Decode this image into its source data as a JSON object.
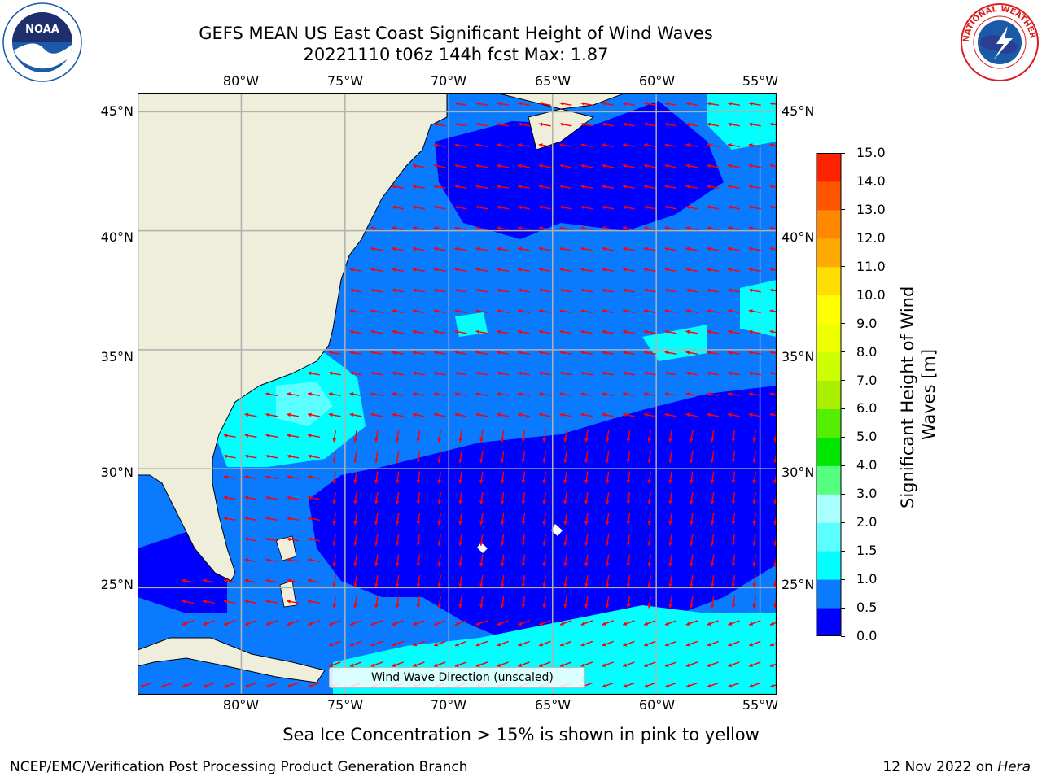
{
  "title": {
    "line1": "GEFS MEAN US East Coast Significant Height of Wind Waves",
    "line2": "20221110 t06z 144h fcst   Max: 1.87"
  },
  "logos": {
    "left": {
      "text": "NOAA",
      "ring_text": "NATIONAL OCEANIC AND ATMOSPHERIC ADMINISTRATION · U.S. DEPARTMENT OF COMMERCE",
      "color": "#1a5aa6"
    },
    "right": {
      "ring_text": "NATIONAL WEATHER SERVICE",
      "color": "#d91e1e"
    }
  },
  "map": {
    "lon_labels": [
      "80°W",
      "75°W",
      "70°W",
      "65°W",
      "60°W",
      "55°W"
    ],
    "lat_labels": [
      "45°N",
      "40°N",
      "35°N",
      "30°N",
      "25°N"
    ],
    "lon_values": [
      -80,
      -75,
      -70,
      -65,
      -60,
      -55
    ],
    "lat_values": [
      45,
      40,
      35,
      30,
      25
    ],
    "lon_range": [
      -85,
      -54.2
    ],
    "lat_range": [
      20.5,
      45.8
    ],
    "legend_label": "Wind Wave Direction (unscaled)",
    "colors": {
      "land": "#efeedb",
      "ocean_low": "#0000ff",
      "ocean_mid": "#0a7bff",
      "ocean_high": "#00ffff",
      "ocean_higher": "#5cffff",
      "arrows": "#ff0000",
      "grid": "#b0b0b0"
    }
  },
  "colorbar": {
    "label": "Significant Height of Wind Waves [m]",
    "ticks": [
      "0.0",
      "0.5",
      "1.0",
      "1.5",
      "2.0",
      "3.0",
      "4.0",
      "5.0",
      "6.0",
      "7.0",
      "8.0",
      "9.0",
      "10.0",
      "11.0",
      "12.0",
      "13.0",
      "14.0",
      "15.0"
    ],
    "colors": [
      "#0000ff",
      "#0a7bff",
      "#00ffff",
      "#5cffff",
      "#aaffff",
      "#55ff7f",
      "#00e600",
      "#55ee00",
      "#aaee00",
      "#ccff00",
      "#eeff00",
      "#ffff00",
      "#ffdd00",
      "#ffaa00",
      "#ff8800",
      "#ff5500",
      "#ff2200",
      "#ff0000"
    ]
  },
  "caption": "Sea Ice Concentration > 15% is shown in pink to yellow",
  "footer": {
    "left": "NCEP/EMC/Verification Post Processing Product Generation Branch",
    "date": "12 Nov 2022 on ",
    "host": "Hera"
  }
}
